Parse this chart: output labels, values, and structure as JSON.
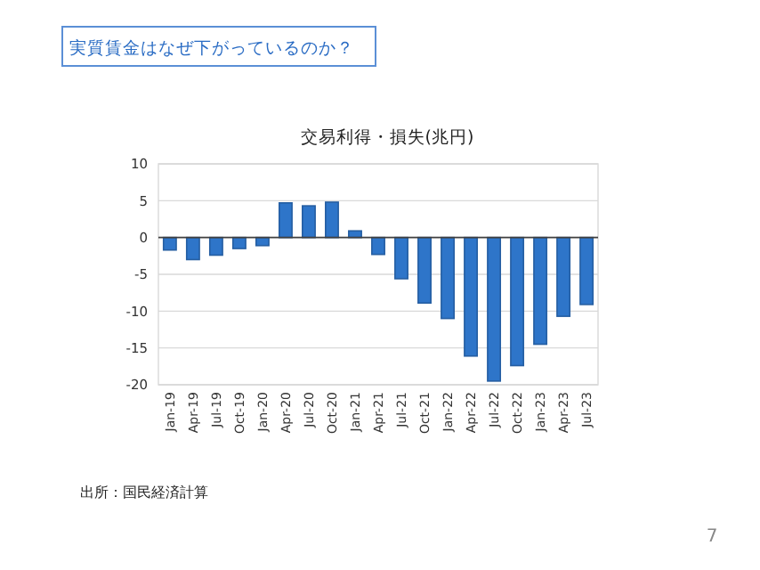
{
  "chart_data": {
    "type": "bar",
    "title": "交易利得・損失(兆円)",
    "categories": [
      "Jan-19",
      "Apr-19",
      "Jul-19",
      "Oct-19",
      "Jan-20",
      "Apr-20",
      "Jul-20",
      "Oct-20",
      "Jan-21",
      "Apr-21",
      "Jul-21",
      "Oct-21",
      "Jan-22",
      "Apr-22",
      "Jul-22",
      "Oct-22",
      "Jan-23",
      "Apr-23",
      "Jul-23"
    ],
    "values": [
      -1.7,
      -3.0,
      -2.4,
      -1.5,
      -1.1,
      4.7,
      4.3,
      4.8,
      0.9,
      -2.3,
      -5.6,
      -8.9,
      -11.0,
      -16.1,
      -19.5,
      -17.4,
      -14.5,
      -10.7,
      -9.1
    ],
    "color": "#2e75c9",
    "ylim": [
      -20,
      10
    ],
    "yticks": [
      -20,
      -15,
      -10,
      -5,
      0,
      5,
      10
    ],
    "grid": "y",
    "annotations": [
      "実質賃金はなぜ下がっているのか？",
      "出所：国民経済計算",
      "7"
    ]
  }
}
